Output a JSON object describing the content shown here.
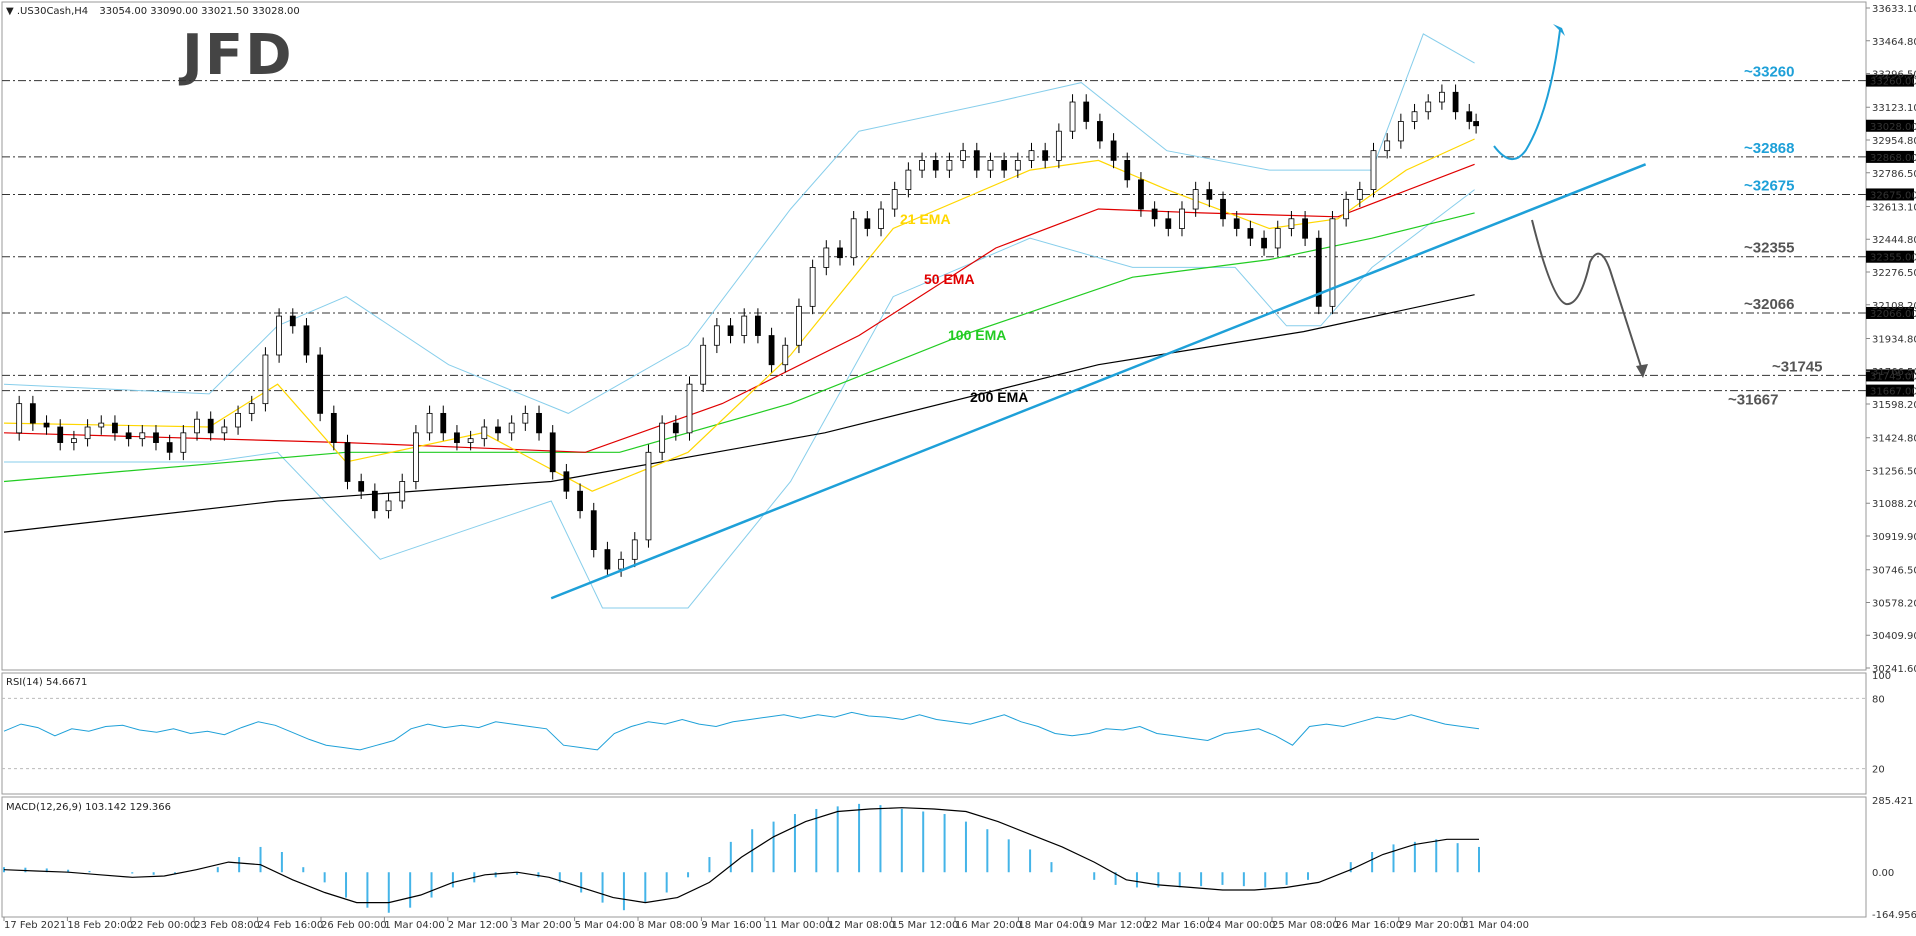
{
  "header": {
    "symbol": ".US30Cash,H4",
    "ohlc": "33054.00 33090.00 33021.50 33028.00",
    "rsi_label": "RSI(14) 54.6671",
    "macd_label": "MACD(12,26,9) 103.142 129.366"
  },
  "logo": "JFD",
  "colors": {
    "background": "#ffffff",
    "up_candle": "#ffffff",
    "down_candle": "#000000",
    "bollinger": "#87ceeb",
    "ema21": "#ffd700",
    "ema50": "#e00000",
    "ema100": "#22cc22",
    "ema200": "#000000",
    "trendline": "#1ea0d8",
    "level_blue": "#1ea0d8",
    "level_gray": "#555555",
    "rsi_line": "#1ea0d8",
    "macd_hist": "#44b4e8",
    "macd_signal": "#000000"
  },
  "chart_data": {
    "type": "candlestick",
    "price_ticks": [
      "33633.10",
      "33464.80",
      "33296.50",
      "33123.10",
      "32954.80",
      "32786.50",
      "32613.10",
      "32444.80",
      "32276.50",
      "32108.20",
      "31934.80",
      "31766.50",
      "31598.20",
      "31424.80",
      "31256.50",
      "31088.20",
      "30919.90",
      "30746.50",
      "30578.20",
      "30409.90",
      "30241.60"
    ],
    "price_range": [
      30241.6,
      33633.1
    ],
    "time_labels": [
      "17 Feb 2021",
      "18 Feb 20:00",
      "22 Feb 00:00",
      "23 Feb 08:00",
      "24 Feb 16:00",
      "26 Feb 00:00",
      "1 Mar 04:00",
      "2 Mar 12:00",
      "3 Mar 20:00",
      "5 Mar 04:00",
      "8 Mar 08:00",
      "9 Mar 16:00",
      "11 Mar 00:00",
      "12 Mar 08:00",
      "15 Mar 12:00",
      "16 Mar 20:00",
      "18 Mar 04:00",
      "19 Mar 12:00",
      "22 Mar 16:00",
      "24 Mar 00:00",
      "25 Mar 08:00",
      "26 Mar 16:00",
      "29 Mar 20:00",
      "31 Mar 04:00"
    ],
    "levels": [
      {
        "label": "~33260",
        "box": "33260.00",
        "value": 33260,
        "color": "blue"
      },
      {
        "label": "~32868",
        "box": "32868.00",
        "value": 32868,
        "color": "blue"
      },
      {
        "label": "~32675",
        "box": "32675.00",
        "value": 32675,
        "color": "blue"
      },
      {
        "label": "~32355",
        "box": "32355.00",
        "value": 32355,
        "color": "gray"
      },
      {
        "label": "~32066",
        "box": "32066.00",
        "value": 32066,
        "color": "gray"
      },
      {
        "label": "~31745",
        "box": "31745.00",
        "value": 31745,
        "color": "gray"
      },
      {
        "label": "~31667",
        "box": "31667.00",
        "value": 31667,
        "color": "gray"
      }
    ],
    "current_price": "33028.00",
    "ema_labels": [
      {
        "text": "21 EMA",
        "color": "ema21"
      },
      {
        "text": "50 EMA",
        "color": "ema50"
      },
      {
        "text": "100 EMA",
        "color": "ema100"
      },
      {
        "text": "200 EMA",
        "color": "ema200"
      }
    ],
    "candle_points": [
      [
        0,
        31450
      ],
      [
        4,
        31600
      ],
      [
        8,
        31500
      ],
      [
        12,
        31480
      ],
      [
        16,
        31400
      ],
      [
        20,
        31420
      ],
      [
        24,
        31480
      ],
      [
        28,
        31500
      ],
      [
        32,
        31450
      ],
      [
        36,
        31420
      ],
      [
        40,
        31450
      ],
      [
        44,
        31400
      ],
      [
        48,
        31350
      ],
      [
        52,
        31450
      ],
      [
        56,
        31520
      ],
      [
        60,
        31450
      ],
      [
        64,
        31480
      ],
      [
        68,
        31550
      ],
      [
        72,
        31600
      ],
      [
        76,
        31850
      ],
      [
        80,
        32050
      ],
      [
        84,
        32000
      ],
      [
        88,
        31850
      ],
      [
        92,
        31550
      ],
      [
        96,
        31400
      ],
      [
        100,
        31200
      ],
      [
        104,
        31150
      ],
      [
        108,
        31050
      ],
      [
        112,
        31100
      ],
      [
        116,
        31200
      ],
      [
        120,
        31450
      ],
      [
        124,
        31550
      ],
      [
        128,
        31450
      ],
      [
        132,
        31400
      ],
      [
        136,
        31420
      ],
      [
        140,
        31480
      ],
      [
        144,
        31450
      ],
      [
        148,
        31500
      ],
      [
        152,
        31550
      ],
      [
        156,
        31450
      ],
      [
        160,
        31250
      ],
      [
        164,
        31150
      ],
      [
        168,
        31050
      ],
      [
        172,
        30850
      ],
      [
        176,
        30750
      ],
      [
        180,
        30800
      ],
      [
        184,
        30900
      ],
      [
        188,
        31350
      ],
      [
        192,
        31500
      ],
      [
        196,
        31450
      ],
      [
        200,
        31700
      ],
      [
        204,
        31900
      ],
      [
        208,
        32000
      ],
      [
        212,
        31950
      ],
      [
        216,
        32050
      ],
      [
        220,
        31950
      ],
      [
        224,
        31800
      ],
      [
        228,
        31900
      ],
      [
        232,
        32100
      ],
      [
        236,
        32300
      ],
      [
        240,
        32400
      ],
      [
        244,
        32350
      ],
      [
        248,
        32550
      ],
      [
        252,
        32500
      ],
      [
        256,
        32600
      ],
      [
        260,
        32700
      ],
      [
        264,
        32800
      ],
      [
        268,
        32850
      ],
      [
        272,
        32800
      ],
      [
        276,
        32850
      ],
      [
        280,
        32900
      ],
      [
        284,
        32800
      ],
      [
        288,
        32850
      ],
      [
        292,
        32800
      ],
      [
        296,
        32850
      ],
      [
        300,
        32900
      ],
      [
        304,
        32850
      ],
      [
        308,
        33000
      ],
      [
        312,
        33150
      ],
      [
        316,
        33050
      ],
      [
        320,
        32950
      ],
      [
        324,
        32850
      ],
      [
        328,
        32750
      ],
      [
        332,
        32600
      ],
      [
        336,
        32550
      ],
      [
        340,
        32500
      ],
      [
        344,
        32600
      ],
      [
        348,
        32700
      ],
      [
        352,
        32650
      ],
      [
        356,
        32550
      ],
      [
        360,
        32500
      ],
      [
        364,
        32450
      ],
      [
        368,
        32400
      ],
      [
        372,
        32500
      ],
      [
        376,
        32550
      ],
      [
        380,
        32450
      ],
      [
        384,
        32100
      ],
      [
        388,
        32550
      ],
      [
        392,
        32650
      ],
      [
        396,
        32700
      ],
      [
        400,
        32900
      ],
      [
        404,
        32950
      ],
      [
        408,
        33050
      ],
      [
        412,
        33100
      ],
      [
        416,
        33150
      ],
      [
        420,
        33200
      ],
      [
        424,
        33100
      ],
      [
        428,
        33050
      ],
      [
        430,
        33028
      ]
    ],
    "ema21": [
      [
        0,
        31500
      ],
      [
        60,
        31480
      ],
      [
        80,
        31700
      ],
      [
        100,
        31300
      ],
      [
        140,
        31450
      ],
      [
        172,
        31150
      ],
      [
        200,
        31350
      ],
      [
        230,
        31850
      ],
      [
        260,
        32500
      ],
      [
        300,
        32800
      ],
      [
        320,
        32850
      ],
      [
        340,
        32700
      ],
      [
        370,
        32500
      ],
      [
        390,
        32550
      ],
      [
        410,
        32800
      ],
      [
        430,
        32960
      ]
    ],
    "ema50": [
      [
        0,
        31450
      ],
      [
        100,
        31400
      ],
      [
        170,
        31350
      ],
      [
        210,
        31600
      ],
      [
        250,
        31950
      ],
      [
        290,
        32400
      ],
      [
        320,
        32600
      ],
      [
        350,
        32580
      ],
      [
        390,
        32560
      ],
      [
        430,
        32830
      ]
    ],
    "ema100": [
      [
        0,
        31200
      ],
      [
        100,
        31350
      ],
      [
        180,
        31350
      ],
      [
        230,
        31600
      ],
      [
        280,
        31950
      ],
      [
        330,
        32250
      ],
      [
        370,
        32340
      ],
      [
        400,
        32450
      ],
      [
        430,
        32580
      ]
    ],
    "ema200": [
      [
        0,
        30940
      ],
      [
        80,
        31100
      ],
      [
        160,
        31200
      ],
      [
        240,
        31450
      ],
      [
        320,
        31800
      ],
      [
        380,
        31970
      ],
      [
        430,
        32160
      ]
    ],
    "bb_upper": [
      [
        0,
        31700
      ],
      [
        60,
        31650
      ],
      [
        80,
        32000
      ],
      [
        100,
        32150
      ],
      [
        130,
        31800
      ],
      [
        165,
        31550
      ],
      [
        200,
        31900
      ],
      [
        230,
        32600
      ],
      [
        250,
        33000
      ],
      [
        290,
        33150
      ],
      [
        315,
        33250
      ],
      [
        340,
        32900
      ],
      [
        370,
        32800
      ],
      [
        400,
        32800
      ],
      [
        415,
        33500
      ],
      [
        430,
        33350
      ]
    ],
    "bb_lower": [
      [
        0,
        31300
      ],
      [
        60,
        31300
      ],
      [
        80,
        31350
      ],
      [
        110,
        30800
      ],
      [
        160,
        31100
      ],
      [
        175,
        30550
      ],
      [
        200,
        30550
      ],
      [
        230,
        31200
      ],
      [
        260,
        32150
      ],
      [
        300,
        32450
      ],
      [
        330,
        32300
      ],
      [
        360,
        32300
      ],
      [
        375,
        32000
      ],
      [
        385,
        32000
      ],
      [
        400,
        32300
      ],
      [
        430,
        32700
      ]
    ],
    "trendline": [
      [
        160,
        30600
      ],
      [
        480,
        32830
      ]
    ],
    "rsi_ticks": [
      "100",
      "80",
      "20"
    ],
    "rsi_values": [
      52,
      58,
      55,
      48,
      54,
      52,
      56,
      57,
      53,
      51,
      54,
      50,
      52,
      49,
      55,
      60,
      57,
      51,
      45,
      40,
      38,
      36,
      40,
      44,
      54,
      58,
      55,
      57,
      55,
      60,
      58,
      56,
      54,
      40,
      38,
      36,
      50,
      56,
      60,
      58,
      62,
      58,
      56,
      60,
      62,
      64,
      66,
      63,
      66,
      64,
      68,
      65,
      64,
      62,
      66,
      62,
      60,
      58,
      62,
      66,
      60,
      56,
      50,
      48,
      50,
      54,
      53,
      56,
      50,
      48,
      46,
      44,
      50,
      52,
      54,
      48,
      40,
      56,
      58,
      56,
      60,
      64,
      62,
      66,
      62,
      58,
      56,
      54
    ],
    "macd_ticks": [
      "285.421",
      "0.00",
      "-164.956"
    ],
    "macd_hist": [
      20,
      18,
      15,
      10,
      5,
      0,
      -5,
      -10,
      -8,
      0,
      20,
      60,
      100,
      80,
      20,
      -40,
      -100,
      -140,
      -160,
      -140,
      -100,
      -60,
      -40,
      -20,
      -10,
      -20,
      -40,
      -80,
      -120,
      -150,
      -120,
      -80,
      -20,
      60,
      120,
      170,
      200,
      230,
      250,
      260,
      270,
      265,
      250,
      240,
      230,
      200,
      170,
      130,
      90,
      40,
      0,
      -30,
      -50,
      -60,
      -60,
      -60,
      -55,
      -50,
      -55,
      -60,
      -50,
      -30,
      0,
      40,
      80,
      110,
      120,
      130,
      115,
      100
    ],
    "macd_signal": [
      10,
      5,
      0,
      -10,
      -20,
      -15,
      10,
      40,
      30,
      -30,
      -80,
      -120,
      -120,
      -90,
      -40,
      -10,
      0,
      -20,
      -60,
      -100,
      -120,
      -100,
      -40,
      60,
      140,
      200,
      240,
      250,
      255,
      250,
      240,
      200,
      150,
      100,
      40,
      -30,
      -50,
      -60,
      -70,
      -70,
      -60,
      -40,
      10,
      70,
      110,
      130,
      130
    ]
  }
}
